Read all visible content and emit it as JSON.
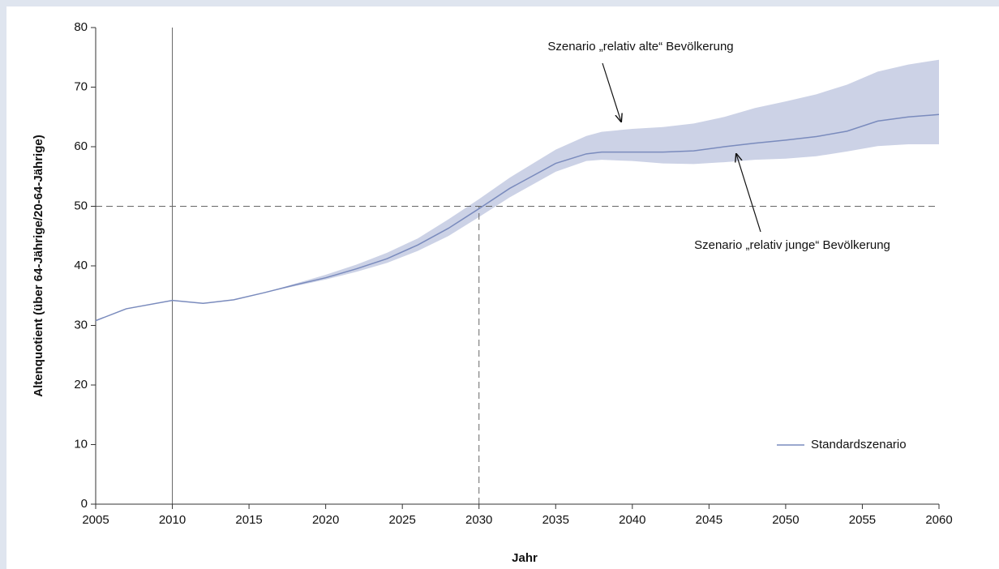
{
  "chart_data": {
    "type": "line",
    "x_label": "Jahr",
    "y_label": "Altenquotient (über 64-Jährige/20-64-Jährige)",
    "x": [
      2005,
      2007,
      2010,
      2012,
      2014,
      2016,
      2018,
      2020,
      2022,
      2024,
      2026,
      2028,
      2030,
      2032,
      2035,
      2037,
      2038,
      2040,
      2042,
      2044,
      2046,
      2048,
      2050,
      2052,
      2054,
      2056,
      2058,
      2060
    ],
    "series": [
      {
        "name": "Standardszenario",
        "color": "#7a8bbd",
        "values": [
          30.8,
          32.8,
          34.2,
          33.7,
          34.3,
          35.5,
          36.8,
          38.0,
          39.5,
          41.2,
          43.5,
          46.3,
          49.6,
          53.0,
          57.2,
          58.8,
          59.1,
          59.1,
          59.1,
          59.3,
          60.0,
          60.6,
          61.1,
          61.7,
          62.6,
          64.3,
          65.0,
          65.4
        ]
      }
    ],
    "band": {
      "color": "#ccd2e6",
      "upper": [
        30.8,
        32.8,
        34.2,
        33.7,
        34.3,
        35.5,
        37.0,
        38.5,
        40.2,
        42.2,
        44.6,
        47.8,
        51.2,
        54.8,
        59.5,
        61.8,
        62.5,
        63.0,
        63.3,
        63.9,
        65.0,
        66.5,
        67.6,
        68.8,
        70.4,
        72.6,
        73.8,
        74.6
      ],
      "lower": [
        30.8,
        32.8,
        34.2,
        33.7,
        34.3,
        35.5,
        36.6,
        37.7,
        39.0,
        40.5,
        42.5,
        45.0,
        48.2,
        51.5,
        55.8,
        57.6,
        57.8,
        57.6,
        57.2,
        57.1,
        57.4,
        57.8,
        58.0,
        58.4,
        59.2,
        60.1,
        60.4,
        60.4
      ]
    },
    "annotations": [
      {
        "text": "Szenario „relativ alte“ Bevölkerung"
      },
      {
        "text": "Szenario „relativ junge“ Bevölkerung"
      }
    ],
    "vlines": [
      {
        "x": 2010,
        "style": "solid"
      },
      {
        "x": 2030,
        "style": "dashed",
        "ymax": 50
      }
    ],
    "hlines": [
      {
        "y": 50,
        "style": "dashed"
      }
    ],
    "xlim": [
      2005,
      2060
    ],
    "xticks": [
      2005,
      2010,
      2015,
      2020,
      2025,
      2030,
      2035,
      2040,
      2045,
      2050,
      2055,
      2060
    ],
    "ylim": [
      0,
      80
    ],
    "yticks": [
      0,
      10,
      20,
      30,
      40,
      50,
      60,
      70,
      80
    ],
    "grid": false,
    "legend": "lower right"
  }
}
